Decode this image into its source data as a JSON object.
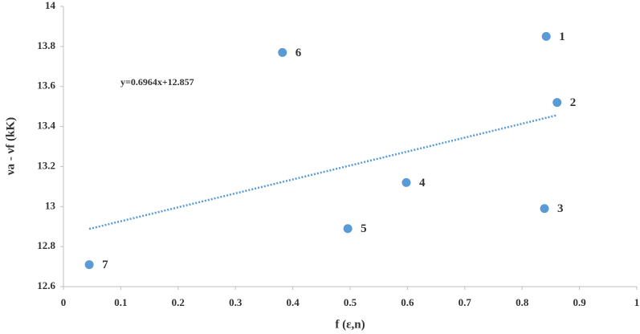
{
  "chart_data": {
    "type": "scatter",
    "x_label": "f (ε,n)",
    "y_label": "νa - νf (kK)",
    "x": [
      0.842,
      0.861,
      0.839,
      0.598,
      0.496,
      0.382,
      0.045
    ],
    "series": [
      {
        "color": "#5b9bd5",
        "values": [
          13.85,
          13.52,
          12.99,
          13.12,
          12.89,
          13.77,
          12.71
        ]
      }
    ],
    "point_labels": [
      "1",
      "2",
      "3",
      "4",
      "5",
      "6",
      "7"
    ],
    "trendline": {
      "label": "y=0.6964x+12.857",
      "slope": 0.6964,
      "intercept": 12.857,
      "color": "#5b9bd5",
      "style": "dotted"
    },
    "xlim": [
      0,
      1
    ],
    "xticks": [
      0,
      0.1,
      0.2,
      0.3,
      0.4,
      0.5,
      0.6,
      0.7,
      0.8,
      0.9,
      1
    ],
    "ylim": [
      12.6,
      14
    ],
    "yticks": [
      12.6,
      12.8,
      13,
      13.2,
      13.4,
      13.6,
      13.8,
      14
    ],
    "grid": false
  }
}
